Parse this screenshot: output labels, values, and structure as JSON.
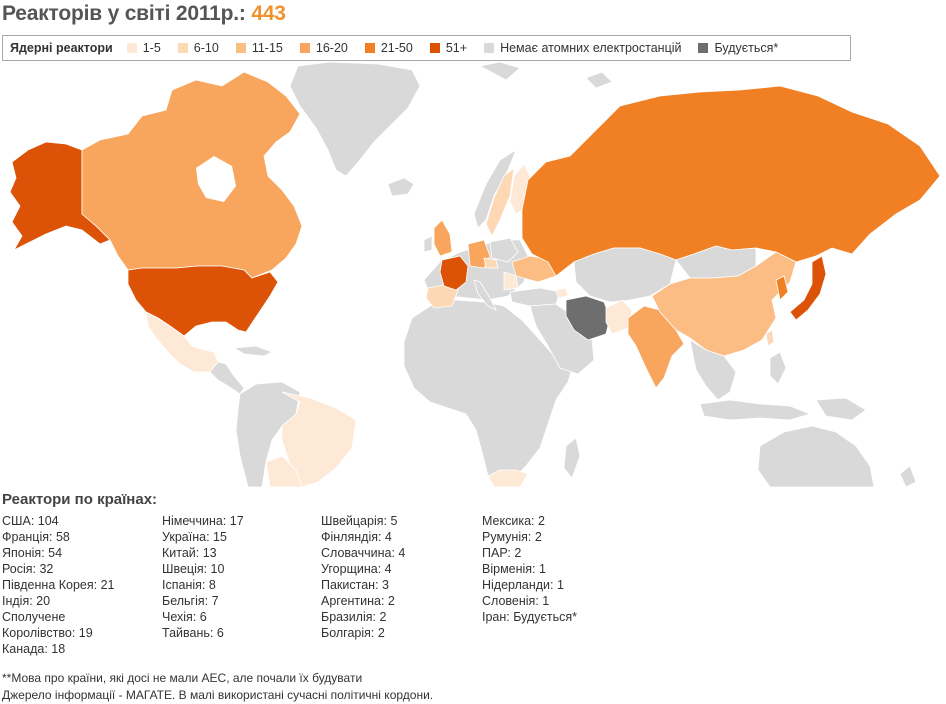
{
  "title": {
    "text": "Реакторів у світі 2011р.: ",
    "count": "443"
  },
  "legend": {
    "title": "Ядерні реактори",
    "items": [
      {
        "label": "1-5",
        "color": "#fde9d6"
      },
      {
        "label": "6-10",
        "color": "#fcd8b4"
      },
      {
        "label": "11-15",
        "color": "#fbbd83"
      },
      {
        "label": "16-20",
        "color": "#f8a55d"
      },
      {
        "label": "21-50",
        "color": "#f17f24"
      },
      {
        "label": "51+",
        "color": "#dc5308"
      },
      {
        "label": "Немає атомних електростанцій",
        "color": "#d9d9d9"
      },
      {
        "label": "Будується*",
        "color": "#6e6e6e"
      }
    ]
  },
  "subtitle": "Реактори по країнах:",
  "columns": [
    [
      "США: 104",
      "Франція: 58",
      "Японія: 54",
      "Росія: 32",
      "Південна Корея: 21",
      "Індія: 20",
      "Сполучене",
      "Королівство: 19",
      "Канада: 18"
    ],
    [
      "Німеччина: 17",
      "Україна: 15",
      "Китай: 13",
      "Швеція: 10",
      "Іспанія: 8",
      "Бельгія: 7",
      "Чехія: 6",
      "Тайвань: 6"
    ],
    [
      "Швейцарія: 5",
      "Фінляндія: 4",
      "Словаччина: 4",
      "Угорщина: 4",
      "Пакистан: 3",
      "Аргентина: 2",
      "Бразилія: 2",
      "Болгарія: 2"
    ],
    [
      "Мексика: 2",
      "Румунія: 2",
      "ПАР: 2",
      "Вірменія: 1",
      "Нідерланди: 1",
      "Словенія: 1",
      "Іран: Будується*"
    ]
  ],
  "footnotes": [
    "**Мова про країни, які досі не мали АЕС, але почали їх будувати",
    "Джерело інформації - МАГАТЕ. В малі використані сучасні політичні кордони."
  ],
  "map": {
    "colors": {
      "none": "#d9d9d9",
      "c1_5": "#fde9d6",
      "c6_10": "#fcd8b4",
      "c11_15": "#fbbd83",
      "c16_20": "#f8a55d",
      "c21_50": "#f17f24",
      "c51": "#dc5308",
      "building": "#6e6e6e"
    }
  }
}
